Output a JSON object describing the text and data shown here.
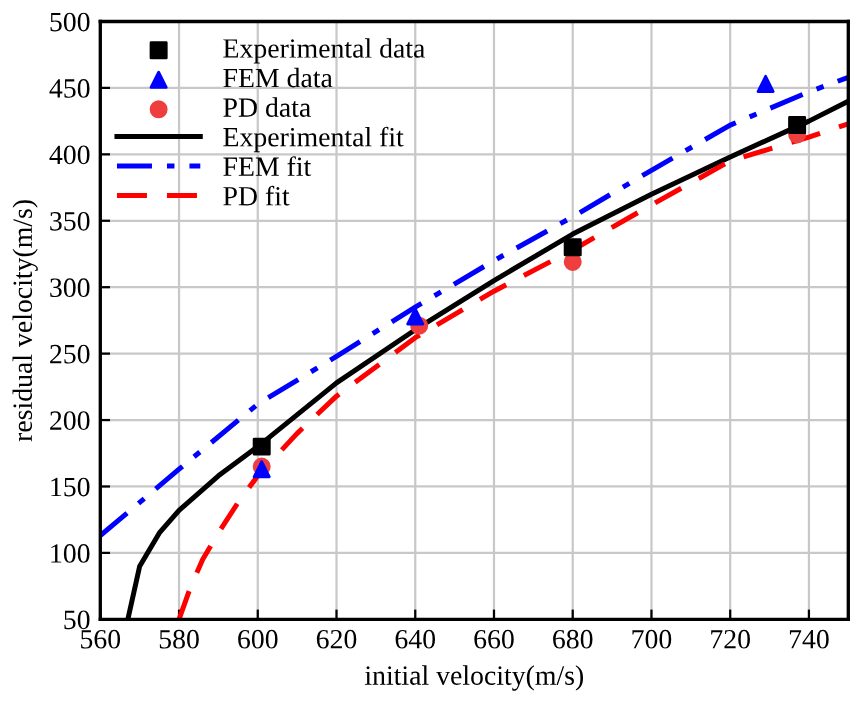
{
  "chart_data": {
    "type": "scatter",
    "xlabel": "initial velocity(m/s)",
    "ylabel": "residual velocity(m/s)",
    "xlim": [
      560,
      750
    ],
    "xticks": [
      560,
      580,
      600,
      620,
      640,
      660,
      680,
      700,
      720,
      740
    ],
    "ylim": [
      50,
      500
    ],
    "yticks": [
      50,
      100,
      150,
      200,
      250,
      300,
      350,
      400,
      450,
      500
    ],
    "grid": true,
    "legend": "top left",
    "series": [
      {
        "name": "Experimental data",
        "marker": "square",
        "color": "#000000",
        "x": [
          601,
          641,
          680,
          737
        ],
        "values": [
          180,
          null,
          330,
          422
        ]
      },
      {
        "name": "FEM data",
        "marker": "triangle",
        "color": "#0000ff",
        "x": [
          601,
          640,
          729
        ],
        "values": [
          163,
          278,
          453
        ]
      },
      {
        "name": "PD data",
        "marker": "circle",
        "color": "#ef3e3e",
        "x": [
          601,
          641,
          680,
          737
        ],
        "values": [
          165,
          271,
          319,
          415
        ]
      },
      {
        "name": "Experimental fit",
        "type": "line",
        "line_style": "solid",
        "color": "#000000",
        "x": [
          567,
          570,
          575,
          580,
          590,
          600,
          620,
          640,
          660,
          680,
          700,
          720,
          740,
          750
        ],
        "values": [
          50,
          90,
          115,
          132,
          158,
          180,
          228,
          268,
          305,
          340,
          370,
          398,
          425,
          440
        ]
      },
      {
        "name": "FEM fit",
        "type": "line",
        "line_style": "dashdot",
        "color": "#0000ff",
        "x": [
          560,
          580,
          600,
          620,
          640,
          660,
          680,
          700,
          720,
          740,
          750
        ],
        "values": [
          113,
          163,
          212,
          248,
          285,
          320,
          353,
          388,
          422,
          447,
          458
        ]
      },
      {
        "name": "PD fit",
        "type": "line",
        "line_style": "dashed",
        "color": "#ff0000",
        "x": [
          580,
          583,
          586,
          590,
          595,
          600,
          610,
          620,
          640,
          660,
          680,
          700,
          720,
          740,
          750
        ],
        "values": [
          50,
          75,
          95,
          115,
          138,
          158,
          190,
          218,
          262,
          297,
          328,
          362,
          395,
          413,
          423
        ]
      }
    ]
  }
}
